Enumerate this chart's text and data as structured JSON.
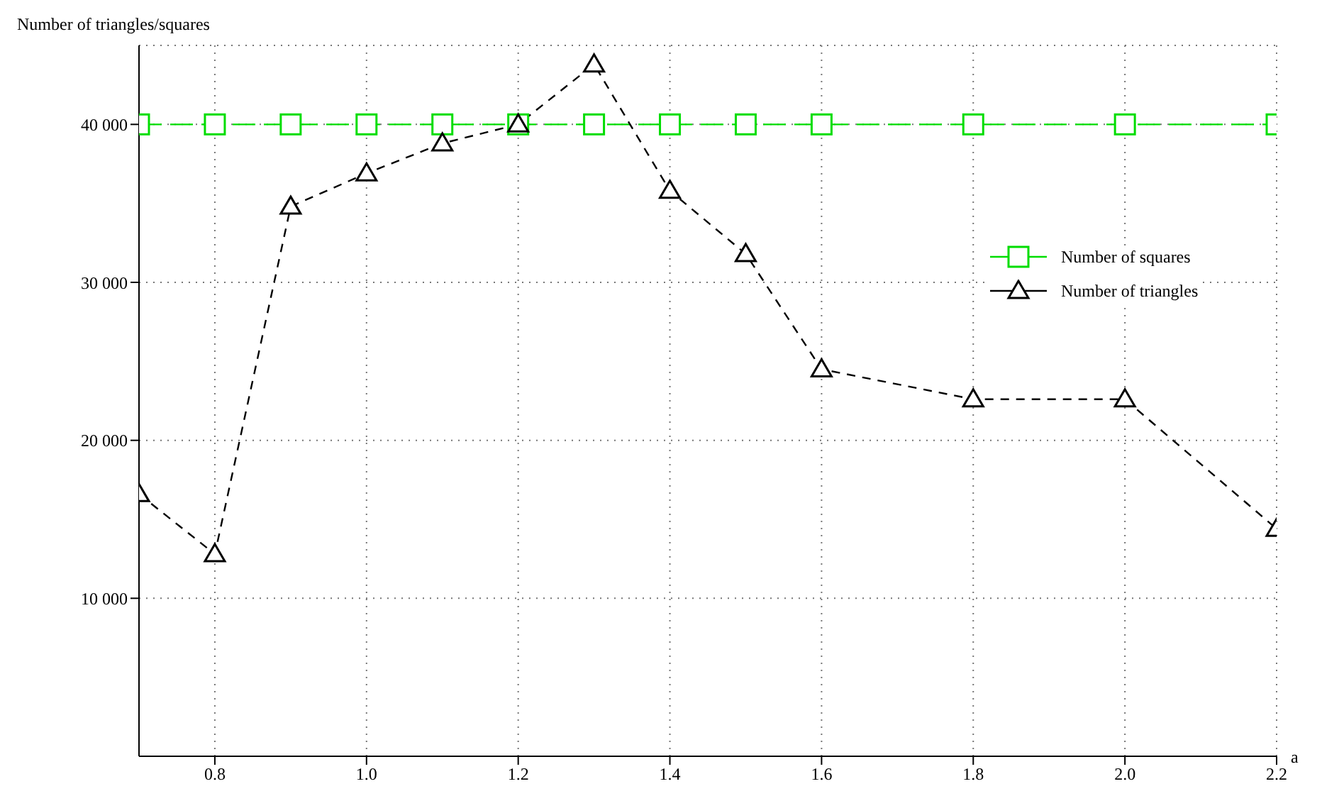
{
  "chart_data": {
    "type": "line",
    "xlabel": "a",
    "ylabel": "Number of triangles/squares",
    "x": [
      0.7,
      0.8,
      0.9,
      1.0,
      1.1,
      1.2,
      1.3,
      1.4,
      1.5,
      1.6,
      1.8,
      2.0,
      2.2
    ],
    "series": [
      {
        "name": "Number of squares",
        "color": "#00dd00",
        "marker": "square",
        "line_style": "dashed",
        "values": [
          40000,
          40000,
          40000,
          40000,
          40000,
          40000,
          40000,
          40000,
          40000,
          40000,
          40000,
          40000,
          40000
        ]
      },
      {
        "name": "Number of triangles",
        "color": "#000000",
        "marker": "triangle",
        "line_style": "dashed",
        "values": [
          16600,
          12800,
          34800,
          36900,
          38800,
          40000,
          43800,
          35800,
          31800,
          24500,
          22600,
          22600,
          14400
        ]
      }
    ],
    "xlim": [
      0.7,
      2.2
    ],
    "xticks": [
      0.8,
      {
        "value": 1,
        "label": "1.0"
      },
      1.2,
      1.4,
      1.6,
      1.8,
      {
        "value": 2,
        "label": "2.0"
      },
      2.2
    ],
    "ylim": [
      0,
      45000
    ],
    "yticks": [
      {
        "value": 10000,
        "label": "10 000"
      },
      {
        "value": 20000,
        "label": "20 000"
      },
      {
        "value": 30000,
        "label": "30 000"
      },
      {
        "value": 40000,
        "label": "40 000"
      }
    ],
    "grid": true,
    "legend": "right"
  }
}
